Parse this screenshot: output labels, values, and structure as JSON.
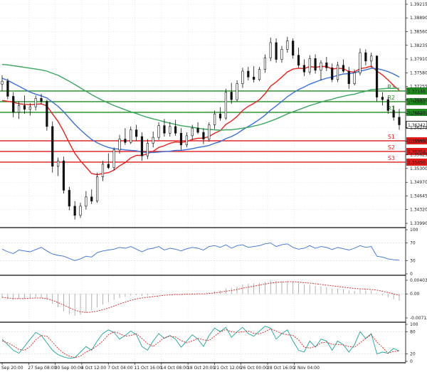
{
  "chart_data": [
    {
      "type": "candlestick",
      "price_axis_labels": [
        "1.39215",
        "1.38890",
        "1.38560",
        "1.38235",
        "1.37910",
        "1.37580",
        "1.37255",
        "1.36930",
        "1.36605",
        "1.36275",
        "1.35950",
        "1.35625",
        "1.35300",
        "1.34970",
        "1.34645",
        "1.34320",
        "1.33990"
      ],
      "ylim": [
        1.3399,
        1.39215
      ],
      "candles": [
        [
          1.3731,
          1.3752,
          1.3715,
          1.3738
        ],
        [
          1.3738,
          1.3744,
          1.3695,
          1.3702
        ],
        [
          1.3702,
          1.3712,
          1.3652,
          1.3664
        ],
        [
          1.3664,
          1.369,
          1.3648,
          1.368
        ],
        [
          1.368,
          1.3704,
          1.366,
          1.3671
        ],
        [
          1.3671,
          1.3686,
          1.3656,
          1.3677
        ],
        [
          1.3677,
          1.3704,
          1.3668,
          1.3697
        ],
        [
          1.3697,
          1.3708,
          1.3682,
          1.369
        ],
        [
          1.369,
          1.3694,
          1.362,
          1.363
        ],
        [
          1.363,
          1.3642,
          1.352,
          1.3535
        ],
        [
          1.3535,
          1.3556,
          1.3512,
          1.3548
        ],
        [
          1.3548,
          1.3558,
          1.347,
          1.3478
        ],
        [
          1.3478,
          1.3486,
          1.343,
          1.344
        ],
        [
          1.344,
          1.3452,
          1.3408,
          1.3418
        ],
        [
          1.3418,
          1.3448,
          1.3412,
          1.344
        ],
        [
          1.344,
          1.3476,
          1.3432,
          1.3462
        ],
        [
          1.3462,
          1.348,
          1.3445,
          1.3452
        ],
        [
          1.3452,
          1.352,
          1.3448,
          1.351
        ],
        [
          1.351,
          1.3548,
          1.35,
          1.354
        ],
        [
          1.354,
          1.3566,
          1.3528,
          1.3532
        ],
        [
          1.3532,
          1.358,
          1.3526,
          1.3574
        ],
        [
          1.3574,
          1.361,
          1.3565,
          1.36
        ],
        [
          1.36,
          1.3626,
          1.3586,
          1.3592
        ],
        [
          1.3592,
          1.363,
          1.3588,
          1.3622
        ],
        [
          1.3622,
          1.3634,
          1.3596,
          1.3606
        ],
        [
          1.3606,
          1.3616,
          1.3548,
          1.356
        ],
        [
          1.356,
          1.36,
          1.3552,
          1.359
        ],
        [
          1.359,
          1.3618,
          1.358,
          1.3604
        ],
        [
          1.3604,
          1.364,
          1.3598,
          1.3632
        ],
        [
          1.3632,
          1.3648,
          1.3606,
          1.3614
        ],
        [
          1.3614,
          1.364,
          1.3606,
          1.363
        ],
        [
          1.363,
          1.3646,
          1.3608,
          1.3614
        ],
        [
          1.3614,
          1.3626,
          1.3574,
          1.3586
        ],
        [
          1.3586,
          1.3616,
          1.358,
          1.3608
        ],
        [
          1.3608,
          1.3634,
          1.3598,
          1.3626
        ],
        [
          1.3626,
          1.364,
          1.3612,
          1.3616
        ],
        [
          1.3616,
          1.3626,
          1.3588,
          1.36
        ],
        [
          1.36,
          1.364,
          1.3594,
          1.3634
        ],
        [
          1.3634,
          1.3668,
          1.3624,
          1.366
        ],
        [
          1.366,
          1.3676,
          1.3644,
          1.365
        ],
        [
          1.365,
          1.372,
          1.3646,
          1.3712
        ],
        [
          1.3712,
          1.3734,
          1.3684,
          1.3694
        ],
        [
          1.3694,
          1.374,
          1.369,
          1.3732
        ],
        [
          1.3732,
          1.377,
          1.3722,
          1.3762
        ],
        [
          1.3762,
          1.3772,
          1.374,
          1.3748
        ],
        [
          1.3748,
          1.3774,
          1.3735,
          1.3742
        ],
        [
          1.3742,
          1.3772,
          1.3738,
          1.3766
        ],
        [
          1.3766,
          1.3802,
          1.3758,
          1.3794
        ],
        [
          1.3794,
          1.3842,
          1.3786,
          1.383
        ],
        [
          1.383,
          1.384,
          1.3782,
          1.379
        ],
        [
          1.379,
          1.3822,
          1.3782,
          1.3814
        ],
        [
          1.3814,
          1.3844,
          1.3806,
          1.3834
        ],
        [
          1.3834,
          1.384,
          1.3792,
          1.38
        ],
        [
          1.38,
          1.3818,
          1.377,
          1.3776
        ],
        [
          1.3776,
          1.379,
          1.375,
          1.376
        ],
        [
          1.376,
          1.38,
          1.3754,
          1.3792
        ],
        [
          1.3792,
          1.3802,
          1.3756,
          1.3764
        ],
        [
          1.3764,
          1.3788,
          1.374,
          1.3782
        ],
        [
          1.3782,
          1.3796,
          1.3762,
          1.377
        ],
        [
          1.377,
          1.378,
          1.3736,
          1.3742
        ],
        [
          1.3742,
          1.3784,
          1.3736,
          1.3776
        ],
        [
          1.3776,
          1.379,
          1.3758,
          1.3762
        ],
        [
          1.3762,
          1.3772,
          1.372,
          1.3732
        ],
        [
          1.3732,
          1.3766,
          1.3728,
          1.3758
        ],
        [
          1.3758,
          1.3816,
          1.3752,
          1.3806
        ],
        [
          1.3806,
          1.3814,
          1.3776,
          1.3786
        ],
        [
          1.3786,
          1.3806,
          1.377,
          1.3798
        ],
        [
          1.3798,
          1.38,
          1.369,
          1.37
        ],
        [
          1.37,
          1.3712,
          1.368,
          1.3694
        ],
        [
          1.3694,
          1.37,
          1.366,
          1.3668
        ],
        [
          1.3668,
          1.368,
          1.3644,
          1.3652
        ],
        [
          1.3652,
          1.3672,
          1.3622,
          1.3634
        ]
      ],
      "moving_averages": [
        {
          "color": "#e8211d",
          "values": [
            1.3692,
            1.369,
            1.3688,
            1.3684,
            1.3683,
            1.3682,
            1.3683,
            1.3684,
            1.3679,
            1.366,
            1.3642,
            1.3618,
            1.3591,
            1.3566,
            1.3548,
            1.3533,
            1.3518,
            1.3515,
            1.3518,
            1.352,
            1.3526,
            1.3536,
            1.3544,
            1.3555,
            1.3561,
            1.3561,
            1.3565,
            1.3571,
            1.358,
            1.3584,
            1.359,
            1.3593,
            1.3592,
            1.3594,
            1.3599,
            1.3602,
            1.3602,
            1.3606,
            1.3614,
            1.362,
            1.3635,
            1.3643,
            1.3654,
            1.3668,
            1.3678,
            1.3685,
            1.3694,
            1.3708,
            1.3726,
            1.3736,
            1.3748,
            1.376,
            1.3767,
            1.3769,
            1.3768,
            1.3773,
            1.3771,
            1.3773,
            1.3773,
            1.3767,
            1.3769,
            1.3768,
            1.3761,
            1.376,
            1.3768,
            1.377,
            1.3774,
            1.3762,
            1.3753,
            1.3741,
            1.3728,
            1.3716
          ]
        },
        {
          "color": "#3a6fd8",
          "values": [
            1.3745,
            1.374,
            1.3733,
            1.3726,
            1.3719,
            1.3712,
            1.3707,
            1.3703,
            1.3698,
            1.3688,
            1.3678,
            1.3665,
            1.365,
            1.3635,
            1.3622,
            1.361,
            1.3599,
            1.3591,
            1.3585,
            1.358,
            1.3577,
            1.3576,
            1.3574,
            1.3573,
            1.3572,
            1.3569,
            1.3568,
            1.3568,
            1.3569,
            1.357,
            1.3571,
            1.3573,
            1.3573,
            1.3575,
            1.3577,
            1.358,
            1.3582,
            1.3585,
            1.359,
            1.3594,
            1.3601,
            1.3606,
            1.3613,
            1.3622,
            1.363,
            1.3638,
            1.3647,
            1.3657,
            1.3669,
            1.3679,
            1.369,
            1.3701,
            1.371,
            1.3718,
            1.3724,
            1.3731,
            1.3736,
            1.3741,
            1.3745,
            1.3748,
            1.3752,
            1.3755,
            1.3756,
            1.3758,
            1.3762,
            1.3765,
            1.3769,
            1.3768,
            1.3765,
            1.3761,
            1.3755,
            1.3748
          ]
        },
        {
          "color": "#3aa65e",
          "values": [
            1.3778,
            1.3777,
            1.3775,
            1.3773,
            1.3771,
            1.3769,
            1.3767,
            1.3765,
            1.3762,
            1.3757,
            1.3752,
            1.3745,
            1.3738,
            1.373,
            1.3722,
            1.3714,
            1.3706,
            1.3699,
            1.3692,
            1.3686,
            1.368,
            1.3675,
            1.367,
            1.3665,
            1.3661,
            1.3656,
            1.3652,
            1.3648,
            1.3645,
            1.3641,
            1.3638,
            1.3635,
            1.3632,
            1.363,
            1.3628,
            1.3626,
            1.3624,
            1.3623,
            1.3622,
            1.3621,
            1.3622,
            1.3622,
            1.3624,
            1.3626,
            1.3628,
            1.3631,
            1.3634,
            1.3638,
            1.3643,
            1.3648,
            1.3654,
            1.366,
            1.3665,
            1.367,
            1.3675,
            1.368,
            1.3684,
            1.3688,
            1.3692,
            1.3695,
            1.3699,
            1.3702,
            1.3705,
            1.3707,
            1.3711,
            1.3714,
            1.3718,
            1.3719,
            1.372,
            1.3721,
            1.3721,
            1.3721
          ]
        }
      ],
      "levels": [
        {
          "name": "R3",
          "value": 1.37146,
          "label": "1.37146",
          "color": "#1e8c1e"
        },
        {
          "name": "R2",
          "value": 1.36892,
          "label": "1.36892",
          "color": "#1e8c1e"
        },
        {
          "name": "R1",
          "value": 1.36637,
          "label": "1.36637",
          "color": "#1e8c1e"
        },
        {
          "name": "S1",
          "value": 1.35959,
          "label": "1.35959",
          "color": "#e01919"
        },
        {
          "name": "S2",
          "value": 1.35704,
          "label": "1.35704",
          "color": "#e01919"
        },
        {
          "name": "S3",
          "value": 1.3545,
          "label": "1.35450",
          "color": "#e01919"
        }
      ],
      "last_price": {
        "value": 1.36342,
        "label": "1.36342"
      }
    },
    {
      "type": "line",
      "axis_labels": [
        "100",
        "70",
        "30",
        "0"
      ],
      "ylim": [
        0,
        100
      ],
      "series": [
        {
          "color": "#3a6fd8",
          "values": [
            56,
            50,
            46,
            54,
            52,
            50,
            55,
            60,
            52,
            45,
            42,
            40,
            35,
            30,
            34,
            40,
            38,
            48,
            52,
            54,
            56,
            60,
            58,
            62,
            56,
            50,
            56,
            58,
            62,
            54,
            58,
            56,
            52,
            57,
            60,
            58,
            54,
            62,
            64,
            60,
            66,
            58,
            64,
            66,
            60,
            62,
            64,
            68,
            70,
            62,
            66,
            68,
            60,
            56,
            58,
            64,
            58,
            62,
            60,
            55,
            60,
            57,
            54,
            58,
            64,
            60,
            62,
            40,
            38,
            34,
            32,
            31
          ]
        }
      ]
    },
    {
      "type": "bar",
      "axis_labels": [
        "0.004037",
        "0.00",
        "-0.007126"
      ],
      "ylim": [
        -0.007126,
        0.004037
      ],
      "values": [
        -0.0012,
        -0.0016,
        -0.0018,
        -0.0015,
        -0.0014,
        -0.0012,
        -0.001,
        -0.0012,
        -0.0018,
        -0.003,
        -0.004,
        -0.0052,
        -0.006,
        -0.0065,
        -0.0062,
        -0.0056,
        -0.0048,
        -0.004,
        -0.0032,
        -0.0025,
        -0.0018,
        -0.0012,
        -0.0008,
        -0.0005,
        -0.0004,
        -0.0006,
        -0.0005,
        -0.0003,
        -0.0001,
        0.0,
        0.0001,
        0.0001,
        -0.0001,
        0.0,
        0.0002,
        0.0002,
        0.0001,
        0.0004,
        0.0008,
        0.001,
        0.0016,
        0.0018,
        0.0022,
        0.0028,
        0.003,
        0.0031,
        0.0033,
        0.0036,
        0.004,
        0.0038,
        0.0038,
        0.0039,
        0.0036,
        0.0032,
        0.0028,
        0.0027,
        0.0024,
        0.0022,
        0.002,
        0.0016,
        0.0016,
        0.0014,
        0.001,
        0.0009,
        0.0012,
        0.001,
        0.001,
        0.0002,
        -0.0004,
        -0.001,
        -0.0016,
        -0.002
      ],
      "signal": [
        -0.001,
        -0.0012,
        -0.0014,
        -0.0014,
        -0.0014,
        -0.0013,
        -0.0012,
        -0.0012,
        -0.0014,
        -0.0019,
        -0.0026,
        -0.0033,
        -0.0041,
        -0.0048,
        -0.0053,
        -0.0055,
        -0.0054,
        -0.0051,
        -0.0047,
        -0.0042,
        -0.0036,
        -0.003,
        -0.0024,
        -0.0019,
        -0.0015,
        -0.0012,
        -0.001,
        -0.0008,
        -0.0006,
        -0.0004,
        -0.0003,
        -0.0002,
        -0.0002,
        -0.0001,
        -0.0001,
        0.0,
        0.0,
        0.0001,
        0.0003,
        0.0005,
        0.0008,
        0.001,
        0.0013,
        0.0017,
        0.002,
        0.0023,
        0.0026,
        0.0029,
        0.0032,
        0.0034,
        0.0035,
        0.0036,
        0.0036,
        0.0035,
        0.0033,
        0.0032,
        0.003,
        0.0028,
        0.0026,
        0.0024,
        0.0022,
        0.002,
        0.0018,
        0.0016,
        0.0015,
        0.0014,
        0.0013,
        0.0011,
        0.0008,
        0.0004,
        0.0,
        -0.0004
      ]
    },
    {
      "type": "line",
      "axis_labels": [
        "100",
        "80",
        "20",
        "0"
      ],
      "ylim": [
        0,
        100
      ],
      "series": [
        {
          "color": "#1aa39a",
          "values": [
            60,
            45,
            30,
            22,
            40,
            60,
            78,
            70,
            50,
            30,
            18,
            12,
            8,
            10,
            25,
            40,
            30,
            55,
            75,
            85,
            78,
            60,
            70,
            82,
            72,
            40,
            30,
            55,
            75,
            62,
            70,
            60,
            38,
            55,
            72,
            60,
            40,
            70,
            90,
            80,
            92,
            65,
            80,
            92,
            75,
            68,
            82,
            95,
            90,
            60,
            75,
            85,
            55,
            30,
            25,
            55,
            38,
            60,
            55,
            30,
            55,
            45,
            25,
            45,
            80,
            62,
            75,
            20,
            25,
            22,
            35,
            28
          ]
        },
        {
          "color": "#d62020",
          "values": [
            55,
            50,
            42,
            32,
            30,
            40,
            58,
            70,
            68,
            52,
            35,
            22,
            14,
            10,
            14,
            25,
            32,
            42,
            55,
            72,
            80,
            75,
            68,
            70,
            75,
            62,
            48,
            40,
            52,
            64,
            68,
            66,
            56,
            50,
            55,
            62,
            58,
            56,
            68,
            80,
            86,
            80,
            78,
            80,
            82,
            76,
            74,
            80,
            88,
            82,
            75,
            72,
            70,
            58,
            38,
            36,
            40,
            50,
            52,
            46,
            46,
            44,
            40,
            38,
            50,
            62,
            72,
            52,
            38,
            22,
            27,
            28
          ]
        }
      ]
    }
  ],
  "x_axis_labels": [
    "Sep 20:00",
    "27 Sep 08:00",
    "30 Sep 00:00",
    "4 Oct 12:00",
    "7 Oct 04:00",
    "11 Oct 16:00",
    "14 Oct 08:00",
    "18 Oct 20:00",
    "21 Oct 12:00",
    "26 Oct 00:00",
    "28 Oct 16:00",
    "2 Nov 04:00"
  ],
  "colors": {
    "grid": "#d9d9d9",
    "frame": "#000000",
    "bull": "#111111",
    "bear": "#111111",
    "price_box": "#ffffff",
    "separator": "#4a4a4a"
  }
}
